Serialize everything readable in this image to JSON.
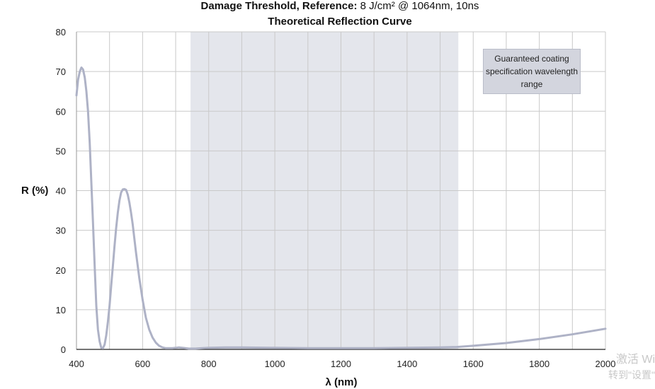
{
  "chart_data": {
    "type": "line",
    "title_prefix": "Damage Threshold, Reference:",
    "title_value": "8 J/cm² @ 1064nm, 10ns",
    "subtitle": "Theoretical Reflection Curve",
    "xlabel": "λ (nm)",
    "ylabel": "R (%)",
    "xlim": [
      400,
      2000
    ],
    "ylim": [
      0,
      80
    ],
    "xticks": [
      400,
      600,
      800,
      1000,
      1200,
      1400,
      1600,
      1800,
      2000
    ],
    "yticks": [
      0,
      10,
      20,
      30,
      40,
      50,
      60,
      70,
      80
    ],
    "grid": true,
    "line_color": "#aeb2c6",
    "band_color": "#e4e6ec",
    "grid_color": "#c9c9c9",
    "shaded_range": {
      "x": [
        745,
        1555
      ],
      "label": "Guaranteed coating specification wavelength range"
    },
    "series": [
      {
        "x": [
          400,
          405,
          410,
          415,
          420,
          425,
          430,
          435,
          440,
          445,
          450,
          455,
          460,
          465,
          470,
          475,
          480,
          485,
          490,
          495,
          500,
          505,
          510,
          515,
          520,
          525,
          530,
          535,
          540,
          545,
          550,
          555,
          560,
          565,
          570,
          575,
          580,
          590,
          600,
          610,
          620,
          630,
          640,
          650,
          660,
          670,
          680,
          690,
          700,
          710,
          720,
          730,
          740,
          750,
          760,
          780,
          800,
          850,
          900,
          1000,
          1100,
          1200,
          1300,
          1400,
          1500,
          1550,
          1600,
          1700,
          1800,
          1900,
          2000
        ],
        "values": [
          64,
          68,
          70,
          71,
          70.5,
          68.5,
          65,
          60,
          52,
          42,
          32,
          21,
          11,
          5,
          2,
          0.4,
          0.3,
          1.2,
          3.5,
          7,
          11,
          16,
          21,
          26,
          30.5,
          34.5,
          37.5,
          39.5,
          40.3,
          40.4,
          40.2,
          39,
          37,
          34.5,
          31.5,
          28,
          24.5,
          18,
          12.5,
          8,
          5,
          3,
          1.7,
          0.9,
          0.5,
          0.3,
          0.3,
          0.3,
          0.4,
          0.5,
          0.4,
          0.3,
          0.2,
          0.2,
          0.2,
          0.3,
          0.4,
          0.5,
          0.5,
          0.4,
          0.3,
          0.3,
          0.3,
          0.4,
          0.5,
          0.6,
          0.9,
          1.6,
          2.6,
          3.8,
          5.2
        ]
      }
    ]
  },
  "watermark": {
    "line1": "激活 Wi",
    "line2": "转到\"设置\""
  }
}
